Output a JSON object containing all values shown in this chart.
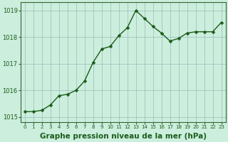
{
  "x": [
    0,
    1,
    2,
    3,
    4,
    5,
    6,
    7,
    8,
    9,
    10,
    11,
    12,
    13,
    14,
    15,
    16,
    17,
    18,
    19,
    20,
    21,
    22,
    23
  ],
  "y": [
    1015.2,
    1015.2,
    1015.25,
    1015.45,
    1015.8,
    1015.85,
    1016.0,
    1016.35,
    1017.05,
    1017.55,
    1017.65,
    1018.05,
    1018.35,
    1019.0,
    1018.7,
    1018.4,
    1018.15,
    1017.85,
    1017.95,
    1018.15,
    1018.2,
    1018.2,
    1018.2,
    1018.55
  ],
  "line_color": "#1a5c1a",
  "marker_color": "#1a5c1a",
  "bg_color": "#cceedd",
  "grid_color": "#99bbbb",
  "title": "Graphe pression niveau de la mer (hPa)",
  "ylim": [
    1014.8,
    1019.3
  ],
  "yticks": [
    1015,
    1016,
    1017,
    1018,
    1019
  ],
  "xlim": [
    -0.5,
    23.5
  ],
  "xtick_labels": [
    "0",
    "1",
    "2",
    "3",
    "4",
    "5",
    "6",
    "7",
    "8",
    "9",
    "10",
    "11",
    "12",
    "13",
    "14",
    "15",
    "16",
    "17",
    "18",
    "19",
    "20",
    "21",
    "22",
    "23"
  ],
  "title_fontsize": 7.5,
  "tick_fontsize": 6.0,
  "line_width": 1.0,
  "marker_size": 2.5
}
